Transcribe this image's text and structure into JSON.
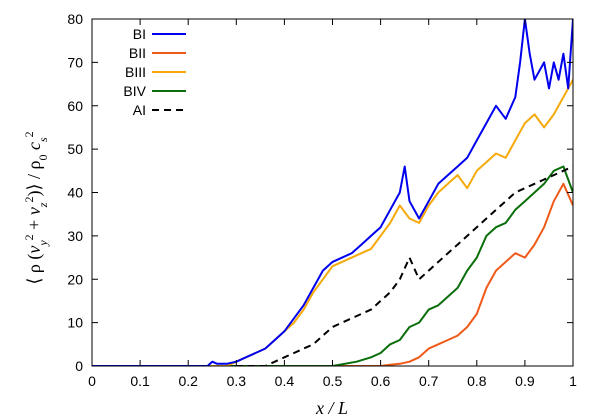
{
  "chart_data": {
    "type": "line",
    "xlabel": "x / L",
    "ylabel": "⟨ ρ (v_y² + v_z²)⟩ / ρ₀ c_s²",
    "xlim": [
      0,
      1
    ],
    "ylim": [
      0,
      80
    ],
    "x_ticks": [
      0,
      0.1,
      0.2,
      0.3,
      0.4,
      0.5,
      0.6,
      0.7,
      0.8,
      0.9,
      1
    ],
    "x_tick_labels": [
      "0",
      "0.1",
      "0.2",
      "0.3",
      "0.4",
      "0.5",
      "0.6",
      "0.7",
      "0.8",
      "0.9",
      "1"
    ],
    "y_ticks": [
      0,
      10,
      20,
      30,
      40,
      50,
      60,
      70,
      80
    ],
    "y_tick_labels": [
      "0",
      "10",
      "20",
      "30",
      "40",
      "50",
      "60",
      "70",
      "80"
    ],
    "grid": false,
    "legend_position": "top-left",
    "series": [
      {
        "name": "BI",
        "color": "#0000ee",
        "dash": "solid",
        "x": [
          0,
          0.24,
          0.25,
          0.26,
          0.28,
          0.3,
          0.32,
          0.34,
          0.36,
          0.38,
          0.4,
          0.42,
          0.44,
          0.46,
          0.48,
          0.5,
          0.52,
          0.54,
          0.56,
          0.58,
          0.6,
          0.62,
          0.64,
          0.65,
          0.66,
          0.68,
          0.7,
          0.72,
          0.74,
          0.76,
          0.78,
          0.8,
          0.82,
          0.84,
          0.86,
          0.88,
          0.89,
          0.9,
          0.91,
          0.92,
          0.94,
          0.95,
          0.96,
          0.97,
          0.98,
          0.99,
          1.0
        ],
        "y": [
          0,
          0,
          1,
          0.5,
          0.5,
          1,
          2,
          3,
          4,
          6,
          8,
          11,
          14,
          18,
          22,
          24,
          25,
          26,
          28,
          30,
          32,
          36,
          40,
          46,
          38,
          34,
          38,
          42,
          44,
          46,
          48,
          52,
          56,
          60,
          57,
          62,
          70,
          80,
          72,
          66,
          70,
          64,
          70,
          66,
          72,
          64,
          80
        ]
      },
      {
        "name": "BII",
        "color": "#f05a18",
        "dash": "solid",
        "x": [
          0,
          0.5,
          0.6,
          0.62,
          0.64,
          0.66,
          0.68,
          0.7,
          0.72,
          0.74,
          0.76,
          0.78,
          0.8,
          0.82,
          0.84,
          0.86,
          0.88,
          0.9,
          0.92,
          0.94,
          0.96,
          0.98,
          1.0
        ],
        "y": [
          0,
          0,
          0,
          0.3,
          0.5,
          1,
          2,
          4,
          5,
          6,
          7,
          9,
          12,
          18,
          22,
          24,
          26,
          25,
          28,
          32,
          38,
          42,
          37
        ]
      },
      {
        "name": "BIII",
        "color": "#f5aa0a",
        "dash": "solid",
        "x": [
          0,
          0.28,
          0.3,
          0.32,
          0.34,
          0.36,
          0.38,
          0.4,
          0.42,
          0.44,
          0.46,
          0.48,
          0.5,
          0.52,
          0.54,
          0.56,
          0.58,
          0.6,
          0.62,
          0.64,
          0.66,
          0.68,
          0.7,
          0.72,
          0.74,
          0.76,
          0.78,
          0.8,
          0.82,
          0.84,
          0.86,
          0.88,
          0.9,
          0.92,
          0.94,
          0.96,
          0.98,
          1.0
        ],
        "y": [
          0,
          0,
          1,
          2,
          3,
          4,
          6,
          8,
          10,
          13,
          17,
          20,
          23,
          24,
          25,
          26,
          27,
          30,
          33,
          37,
          34,
          33,
          37,
          40,
          42,
          44,
          41,
          45,
          47,
          49,
          48,
          52,
          56,
          58,
          55,
          58,
          62,
          66
        ]
      },
      {
        "name": "BIV",
        "color": "#0a6e0a",
        "dash": "solid",
        "x": [
          0,
          0.5,
          0.55,
          0.58,
          0.6,
          0.62,
          0.64,
          0.66,
          0.68,
          0.7,
          0.72,
          0.74,
          0.76,
          0.78,
          0.8,
          0.82,
          0.84,
          0.86,
          0.88,
          0.9,
          0.92,
          0.94,
          0.96,
          0.98,
          1.0
        ],
        "y": [
          0,
          0,
          1,
          2,
          3,
          5,
          6,
          9,
          10,
          13,
          14,
          16,
          18,
          22,
          25,
          30,
          32,
          33,
          36,
          38,
          40,
          42,
          45,
          46,
          40
        ]
      },
      {
        "name": "AI",
        "color": "#000000",
        "dash": "dashed",
        "x": [
          0,
          0.36,
          0.38,
          0.4,
          0.42,
          0.44,
          0.46,
          0.48,
          0.5,
          0.52,
          0.54,
          0.56,
          0.58,
          0.6,
          0.62,
          0.64,
          0.66,
          0.68,
          0.7,
          0.72,
          0.74,
          0.76,
          0.78,
          0.8,
          0.82,
          0.84,
          0.86,
          0.88,
          0.9,
          0.92,
          0.94,
          0.96,
          0.98,
          1.0
        ],
        "y": [
          0,
          0,
          1,
          2,
          3,
          4,
          5,
          7,
          9,
          10,
          11,
          12,
          13,
          15,
          17,
          20,
          25,
          20,
          22,
          24,
          26,
          28,
          30,
          32,
          34,
          36,
          38,
          40,
          41,
          42,
          43,
          44,
          45,
          46
        ]
      }
    ]
  }
}
